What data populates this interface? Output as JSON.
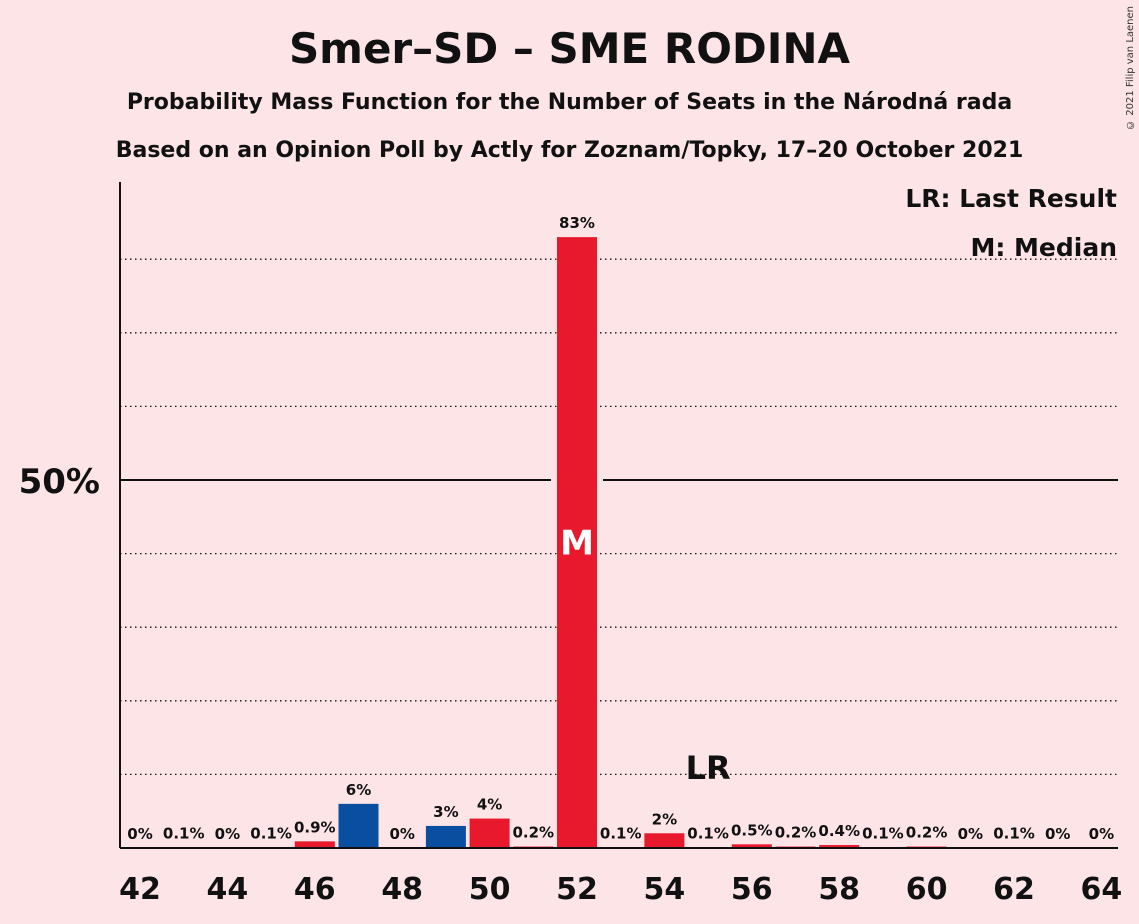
{
  "chart_data": {
    "type": "bar",
    "title": "Smer–SD – SME RODINA",
    "subtitle": "Probability Mass Function for the Number of Seats in the Národná rada",
    "subtitle2": "Based on an Opinion Poll by Actly for Zoznam/Topky, 17–20 October 2021",
    "copyright": "© 2021 Filip van Laenen",
    "legend": [
      "LR: Last Result",
      "M: Median"
    ],
    "ylabel_50": "50%",
    "ylim": [
      0,
      90
    ],
    "x_tick_labels": [
      "42",
      "44",
      "46",
      "48",
      "50",
      "52",
      "54",
      "56",
      "58",
      "60",
      "62",
      "64"
    ],
    "categories": [
      42,
      43,
      44,
      45,
      46,
      47,
      48,
      49,
      50,
      51,
      52,
      53,
      54,
      55,
      56,
      57,
      58,
      59,
      60,
      61,
      62,
      63,
      64
    ],
    "values": [
      0,
      0.1,
      0,
      0.1,
      0.9,
      6,
      0,
      3,
      4,
      0.2,
      83,
      0.1,
      2,
      0.1,
      0.5,
      0.2,
      0.4,
      0.1,
      0.2,
      0,
      0.1,
      0,
      0
    ],
    "value_labels": [
      "0%",
      "0.1%",
      "0%",
      "0.1%",
      "0.9%",
      "6%",
      "0%",
      "3%",
      "4%",
      "0.2%",
      "83%",
      "0.1%",
      "2%",
      "0.1%",
      "0.5%",
      "0.2%",
      "0.4%",
      "0.1%",
      "0.2%",
      "0%",
      "0.1%",
      "0%",
      "0%"
    ],
    "median_seat": 52,
    "median_label": "M",
    "last_result_seat": 55,
    "last_result_label": "LR",
    "colors": {
      "red": "#E8192C",
      "blue": "#0A4EA0",
      "background": "#FDE4E6"
    }
  }
}
